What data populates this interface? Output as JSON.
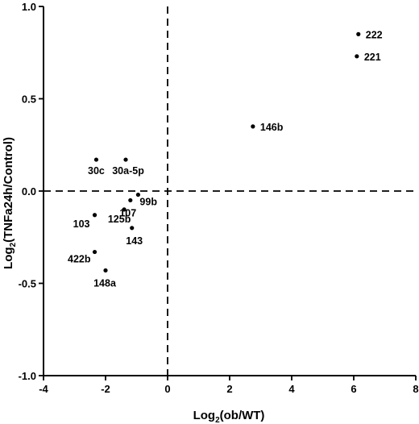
{
  "chart_data": {
    "type": "scatter",
    "title": "",
    "xlabel_base": "Log",
    "xlabel_sub": "2",
    "xlabel_rest": "(ob/WT)",
    "ylabel_base": "Log",
    "ylabel_sub": "2",
    "ylabel_rest": "(TNFa24h/Control)",
    "xlim": [
      -4,
      8
    ],
    "ylim": [
      -1.0,
      1.0
    ],
    "x_ticks": [
      -4,
      -2,
      0,
      2,
      4,
      6,
      8
    ],
    "x_tick_labels": [
      "-4",
      "-2",
      "0",
      "2",
      "4",
      "6",
      "8"
    ],
    "y_ticks": [
      -1.0,
      -0.5,
      0.0,
      0.5,
      1.0
    ],
    "y_tick_labels": [
      "-1.0",
      "-0.5",
      "0.0",
      "0.5",
      "1.0"
    ],
    "reference_lines": {
      "x": 0,
      "y": 0,
      "style": "dashed"
    },
    "grid": false,
    "legend": "none",
    "points": [
      {
        "label": "222",
        "x": 6.15,
        "y": 0.85
      },
      {
        "label": "221",
        "x": 6.1,
        "y": 0.73
      },
      {
        "label": "146b",
        "x": 2.75,
        "y": 0.35
      },
      {
        "label": "30c",
        "x": -2.3,
        "y": 0.17
      },
      {
        "label": "30a-5p",
        "x": -1.35,
        "y": 0.17
      },
      {
        "label": "99b",
        "x": -0.95,
        "y": -0.02
      },
      {
        "label": "107",
        "x": -1.2,
        "y": -0.05
      },
      {
        "label": "125b",
        "x": -1.4,
        "y": -0.1
      },
      {
        "label": "103",
        "x": -2.35,
        "y": -0.13
      },
      {
        "label": "143",
        "x": -1.15,
        "y": -0.2
      },
      {
        "label": "422b",
        "x": -2.35,
        "y": -0.33
      },
      {
        "label": "148a",
        "x": -2.0,
        "y": -0.43
      }
    ]
  }
}
